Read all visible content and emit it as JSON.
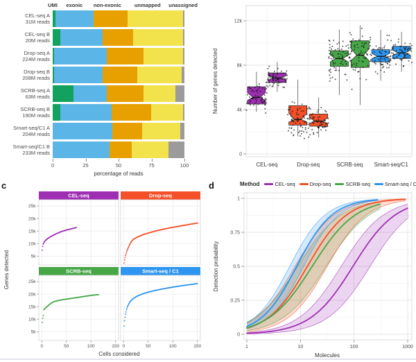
{
  "figure": {
    "letters": {
      "c": "c",
      "d": "d"
    },
    "background": "#ffffff"
  },
  "chart_data": [
    {
      "id": "a",
      "type": "bar",
      "orientation": "horizontal",
      "stacked": true,
      "xlabel": "percentage of reads",
      "xticks": [
        0,
        25,
        50,
        75,
        100
      ],
      "xlim": [
        0,
        100
      ],
      "segments": [
        {
          "key": "umi",
          "label": "UMI",
          "color": "#12a15e",
          "label_pos": 0
        },
        {
          "key": "exonic",
          "label": "exonic",
          "color": "#5bb5e7",
          "label_pos": 16.5
        },
        {
          "key": "non_exonic",
          "label": "non-exonic",
          "color": "#e8a000",
          "label_pos": 41.5
        },
        {
          "key": "unmapped",
          "label": "unmapped",
          "color": "#f2e34c",
          "label_pos": 72
        },
        {
          "key": "unassigned",
          "label": "unassigned",
          "color": "#9b9b9b",
          "label_pos": 99
        }
      ],
      "rows": [
        {
          "label": "CEL-seq A",
          "reads": "31M reads",
          "values": [
            2,
            29,
            26,
            42,
            1
          ]
        },
        {
          "label": "CEL-seq B",
          "reads": "20M reads",
          "values": [
            6,
            32,
            23,
            38,
            1
          ]
        },
        {
          "label": "Drop-seq A",
          "reads": "224M reads",
          "values": [
            1,
            40,
            28,
            30,
            1
          ]
        },
        {
          "label": "Drop-seq B",
          "reads": "208M reads",
          "values": [
            1,
            37,
            26,
            34,
            2
          ]
        },
        {
          "label": "SCRB-seq A",
          "reads": "63M reads",
          "values": [
            16,
            25,
            28,
            24,
            7
          ]
        },
        {
          "label": "SCRB-seq B",
          "reads": "190M reads",
          "values": [
            6,
            39,
            30,
            24,
            1
          ]
        },
        {
          "label": "Smart-seq/C1 A",
          "reads": "204M reads",
          "values": [
            0,
            45,
            23,
            29,
            3
          ]
        },
        {
          "label": "Smart-seq/C1 B",
          "reads": "233M reads",
          "values": [
            0,
            43,
            17,
            28,
            12
          ]
        }
      ]
    },
    {
      "id": "b",
      "type": "box",
      "ylabel": "Number of genes detected",
      "ylim": [
        0,
        12800
      ],
      "yticks": [
        {
          "v": 0,
          "label": "0"
        },
        {
          "v": 4000,
          "label": "4k"
        },
        {
          "v": 8000,
          "label": "8k"
        },
        {
          "v": 12000,
          "label": "12k"
        }
      ],
      "groups": [
        {
          "method": "CEL-seq",
          "color": "#9e2fb3",
          "boxes": [
            {
              "rep": "A",
              "whisker_low": 3800,
              "q1": 4500,
              "median": 5100,
              "q3": 6050,
              "whisker_high": 7400
            },
            {
              "rep": "B",
              "whisker_low": 5600,
              "q1": 6450,
              "median": 6850,
              "q3": 7300,
              "whisker_high": 8300
            }
          ]
        },
        {
          "method": "Drop-seq",
          "color": "#f4502a",
          "boxes": [
            {
              "rep": "A",
              "whisker_low": 1600,
              "q1": 2600,
              "median": 3100,
              "q3": 4350,
              "whisker_high": 6700
            },
            {
              "rep": "B",
              "whisker_low": 1500,
              "q1": 2500,
              "median": 2950,
              "q3": 3600,
              "whisker_high": 5100
            }
          ]
        },
        {
          "method": "SCRB-seq",
          "color": "#47a747",
          "boxes": [
            {
              "rep": "A",
              "whisker_low": 5300,
              "q1": 7900,
              "median": 8600,
              "q3": 9300,
              "whisker_high": 11200
            },
            {
              "rep": "B",
              "whisker_low": 4400,
              "q1": 7800,
              "median": 8900,
              "q3": 10200,
              "whisker_high": 11600
            }
          ]
        },
        {
          "method": "Smart-seq/C1",
          "color": "#2e96f0",
          "boxes": [
            {
              "rep": "A",
              "whisker_low": 6600,
              "q1": 8300,
              "median": 8800,
              "q3": 9400,
              "whisker_high": 11200
            },
            {
              "rep": "B",
              "whisker_low": 7400,
              "q1": 8600,
              "median": 9100,
              "q3": 9700,
              "whisker_high": 11000
            }
          ]
        }
      ]
    },
    {
      "id": "c",
      "type": "scatter",
      "xlabel": "Cells considered",
      "ylabel": "Genes detected",
      "xticks": [
        0,
        50,
        100,
        150
      ],
      "yticks": [
        {
          "v": 5,
          "label": "5k"
        },
        {
          "v": 10,
          "label": "10k"
        },
        {
          "v": 15,
          "label": "15k"
        },
        {
          "v": 20,
          "label": "20k"
        },
        {
          "v": 25,
          "label": "25k"
        }
      ],
      "units": "thousands of genes",
      "facets": [
        {
          "name": "CEL-seq",
          "color": "#9e2fb3",
          "max_cells": 70,
          "anchors": [
            [
              1,
              7.4
            ],
            [
              2,
              8.9
            ],
            [
              3,
              9.8
            ],
            [
              4,
              10.3
            ],
            [
              6,
              10.9
            ],
            [
              10,
              11.7
            ],
            [
              15,
              12.4
            ],
            [
              20,
              13.0
            ],
            [
              30,
              14.0
            ],
            [
              40,
              14.8
            ],
            [
              50,
              15.4
            ],
            [
              60,
              15.9
            ],
            [
              70,
              16.4
            ]
          ]
        },
        {
          "name": "Drop-seq",
          "color": "#f4502a",
          "max_cells": 150,
          "anchors": [
            [
              1,
              2.3
            ],
            [
              2,
              3.5
            ],
            [
              3,
              4.4
            ],
            [
              4,
              5.2
            ],
            [
              6,
              6.6
            ],
            [
              8,
              7.7
            ],
            [
              10,
              8.6
            ],
            [
              13,
              9.9
            ],
            [
              16,
              10.9
            ],
            [
              20,
              11.7
            ],
            [
              25,
              12.3
            ],
            [
              30,
              12.8
            ],
            [
              40,
              13.6
            ],
            [
              50,
              14.2
            ],
            [
              65,
              15.0
            ],
            [
              80,
              15.7
            ],
            [
              100,
              16.5
            ],
            [
              120,
              17.2
            ],
            [
              135,
              17.7
            ],
            [
              150,
              18.2
            ]
          ]
        },
        {
          "name": "SCRB-seq",
          "color": "#47a747",
          "max_cells": 115,
          "anchors": [
            [
              1,
              8.7
            ],
            [
              2,
              10.4
            ],
            [
              3,
              11.5
            ],
            [
              4,
              13.8
            ],
            [
              6,
              14.2
            ],
            [
              10,
              14.9
            ],
            [
              15,
              15.8
            ],
            [
              20,
              16.5
            ],
            [
              25,
              17.0
            ],
            [
              30,
              17.3
            ],
            [
              40,
              17.7
            ],
            [
              50,
              18.0
            ],
            [
              60,
              18.3
            ],
            [
              70,
              18.6
            ],
            [
              80,
              18.9
            ],
            [
              90,
              19.2
            ],
            [
              100,
              19.5
            ],
            [
              110,
              19.7
            ],
            [
              115,
              19.8
            ]
          ]
        },
        {
          "name": "Smart-seq / C1",
          "color": "#2e96f0",
          "max_cells": 150,
          "anchors": [
            [
              1,
              7.3
            ],
            [
              2,
              9.4
            ],
            [
              3,
              10.8
            ],
            [
              4,
              12.0
            ],
            [
              6,
              13.8
            ],
            [
              8,
              15.0
            ],
            [
              10,
              15.9
            ],
            [
              13,
              16.9
            ],
            [
              16,
              17.6
            ],
            [
              20,
              18.3
            ],
            [
              25,
              18.9
            ],
            [
              30,
              19.4
            ],
            [
              40,
              20.2
            ],
            [
              50,
              20.8
            ],
            [
              65,
              21.5
            ],
            [
              80,
              22.1
            ],
            [
              100,
              22.8
            ],
            [
              120,
              23.4
            ],
            [
              135,
              23.8
            ],
            [
              150,
              24.2
            ]
          ]
        }
      ]
    },
    {
      "id": "d",
      "type": "line",
      "legend_title": "Method",
      "xlabel": "Molecules",
      "ylabel": "Detection probability",
      "xscale": "log10",
      "xticks": [
        1,
        10,
        100,
        1000
      ],
      "yticks": [
        0,
        0.25,
        0.5,
        0.75,
        1
      ],
      "series": [
        {
          "name": "CEL-seq",
          "color": "#9e2fb3",
          "logistic_k": 2.5,
          "logistic_mid_log10": 1.98,
          "ribbon_low_log10": 1.76,
          "ribbon_high_log10": 2.3,
          "x_end": 1050
        },
        {
          "name": "Drop-seq",
          "color": "#f4502a",
          "logistic_k": 2.7,
          "logistic_mid_log10": 1.13,
          "ribbon_low_log10": 0.9,
          "ribbon_high_log10": 1.5,
          "x_end": 930
        },
        {
          "name": "SCRB-seq",
          "color": "#47a747",
          "logistic_k": 2.45,
          "logistic_mid_log10": 1.22,
          "ribbon_low_log10": 0.95,
          "ribbon_high_log10": 1.48,
          "x_end": 320
        },
        {
          "name": "Smart-seq / C1",
          "color": "#2e96f0",
          "logistic_k": 3.0,
          "logistic_mid_log10": 0.93,
          "ribbon_low_log10": 0.8,
          "ribbon_high_log10": 1.06,
          "x_end": 300
        }
      ]
    }
  ]
}
